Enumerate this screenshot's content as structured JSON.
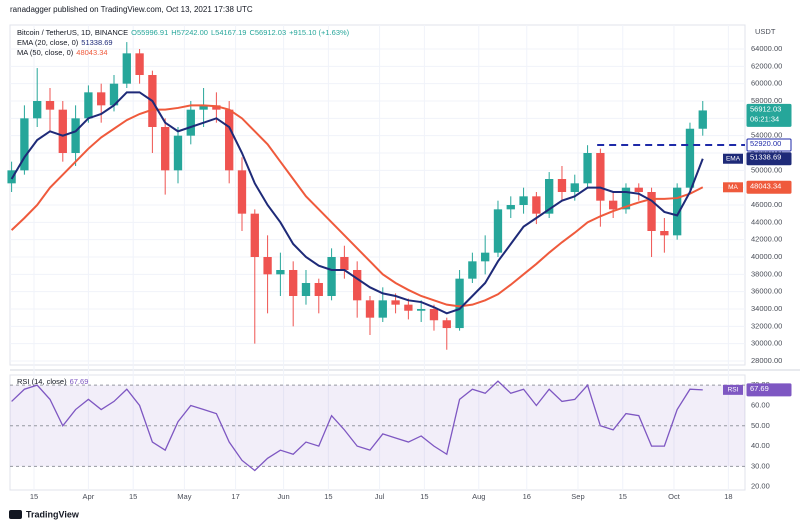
{
  "header": "ranadagger published on TradingView.com, Oct 13, 2021 17:38 UTC",
  "footer": "TradingView",
  "chart_data": [
    {
      "type": "candlestick",
      "legend": {
        "symbol": "Bitcoin / TetherUS, 1D, BINANCE",
        "open": "O55996.91",
        "high": "H57242.00",
        "low": "L54167.19",
        "close": "C56912.03",
        "change": "+915.10 (+1.63%)"
      },
      "unit": "USDT",
      "countdown": "06:21:34",
      "up_color": "#26a69a",
      "down_color": "#ef5350",
      "x": [
        -7,
        -3,
        1,
        5,
        9,
        13,
        17,
        21,
        25,
        29,
        33,
        37,
        41,
        45,
        49,
        53,
        57,
        61,
        65,
        69,
        73,
        77,
        81,
        85,
        89,
        93,
        97,
        101,
        105,
        109,
        113,
        117,
        121,
        125,
        129,
        133,
        137,
        141,
        145,
        149,
        153,
        157,
        161,
        165,
        169,
        173,
        177,
        181,
        185,
        189,
        193,
        197,
        201,
        205,
        209
      ],
      "open": [
        48500,
        50000,
        56000,
        58000,
        57000,
        52000,
        56000,
        59000,
        57500,
        60000,
        63500,
        61000,
        55000,
        50000,
        54000,
        57000,
        57500,
        57000,
        50000,
        45000,
        40000,
        38000,
        38500,
        35500,
        37000,
        35500,
        40000,
        38500,
        35000,
        33000,
        35000,
        34500,
        33800,
        34000,
        32700,
        31800,
        37500,
        39500,
        40500,
        45500,
        46000,
        47000,
        45000,
        49000,
        47500,
        48500,
        52000,
        46500,
        45500,
        48000,
        47500,
        43000,
        42500,
        48000,
        54800
      ],
      "high": [
        51000,
        57500,
        61800,
        59500,
        58000,
        57500,
        59800,
        60000,
        61000,
        64800,
        64000,
        61500,
        56000,
        55000,
        58000,
        59500,
        59000,
        58000,
        51500,
        45500,
        42500,
        40500,
        39500,
        38500,
        37500,
        41000,
        41300,
        39500,
        35500,
        36500,
        35800,
        35200,
        35000,
        34500,
        33000,
        38500,
        40500,
        42500,
        46500,
        47000,
        48000,
        47500,
        49800,
        50500,
        49500,
        52900,
        52500,
        47500,
        48500,
        48500,
        48000,
        44500,
        48500,
        55500,
        58000
      ],
      "low": [
        47500,
        49500,
        55000,
        54500,
        51000,
        50500,
        55500,
        55500,
        56800,
        59500,
        60000,
        52000,
        47200,
        48500,
        53000,
        55000,
        55500,
        48500,
        43000,
        30000,
        33500,
        35500,
        32000,
        34500,
        33500,
        35000,
        37500,
        33000,
        31000,
        32500,
        33500,
        32800,
        32500,
        31500,
        29300,
        31500,
        37000,
        38000,
        40000,
        44500,
        45000,
        43800,
        44500,
        46500,
        46500,
        48000,
        43500,
        44500,
        45000,
        46500,
        40000,
        40500,
        42000,
        47500,
        54000
      ],
      "close": [
        50000,
        56000,
        58000,
        57000,
        52000,
        56000,
        59000,
        57500,
        60000,
        63500,
        61000,
        55000,
        50000,
        54000,
        57000,
        57500,
        57000,
        50000,
        45000,
        40000,
        38000,
        38500,
        35500,
        37000,
        35500,
        40000,
        38500,
        35000,
        33000,
        35000,
        34500,
        33800,
        34000,
        32700,
        31800,
        37500,
        39500,
        40500,
        45500,
        46000,
        47000,
        45000,
        49000,
        47500,
        48500,
        52000,
        46500,
        45500,
        48000,
        47500,
        43000,
        42500,
        48000,
        54800,
        56912.03
      ],
      "series": [
        {
          "name": "MA (50, close, 0)",
          "tag": "MA",
          "color": "#ef5a3c",
          "values": [
            43100,
            44500,
            46000,
            48000,
            49500,
            51000,
            52500,
            53800,
            54800,
            55800,
            56500,
            57000,
            57000,
            57200,
            57500,
            57500,
            57400,
            57000,
            56000,
            54500,
            53000,
            51000,
            49000,
            47000,
            45500,
            44000,
            42500,
            41000,
            39500,
            38000,
            37000,
            36200,
            35500,
            35000,
            34500,
            34300,
            34500,
            35000,
            35700,
            36800,
            38000,
            39200,
            40500,
            41700,
            42800,
            44000,
            44700,
            45300,
            45800,
            46300,
            46700,
            46700,
            46800,
            47300,
            48043.34
          ]
        },
        {
          "name": "EMA (20, close, 0)",
          "tag": "EMA",
          "color": "#1e2a78",
          "values": [
            49000,
            51500,
            53500,
            54500,
            54000,
            54500,
            56000,
            56500,
            57500,
            59000,
            59000,
            58000,
            55500,
            54500,
            55000,
            55500,
            56000,
            55000,
            52000,
            48500,
            46000,
            44000,
            41500,
            40000,
            39000,
            38500,
            38500,
            37500,
            36500,
            35800,
            35500,
            35000,
            34800,
            34200,
            33500,
            34000,
            35500,
            37000,
            39500,
            41500,
            43500,
            44500,
            45500,
            46500,
            47000,
            48000,
            48000,
            47500,
            47500,
            47300,
            46500,
            45200,
            44800,
            47500,
            51338.69
          ]
        }
      ],
      "level": {
        "value": 52920,
        "label": "52920.00"
      },
      "xlim": [
        -7.5,
        222.2
      ],
      "ylim": [
        27538,
        66770
      ],
      "xticks": [
        {
          "value": 0,
          "label": "15"
        },
        {
          "value": 17,
          "label": "Apr"
        },
        {
          "value": 31,
          "label": "15"
        },
        {
          "value": 47,
          "label": "May"
        },
        {
          "value": 63,
          "label": "17"
        },
        {
          "value": 78,
          "label": "Jun"
        },
        {
          "value": 92,
          "label": "15"
        },
        {
          "value": 108,
          "label": "Jul"
        },
        {
          "value": 122,
          "label": "15"
        },
        {
          "value": 139,
          "label": "Aug"
        },
        {
          "value": 154,
          "label": "16"
        },
        {
          "value": 170,
          "label": "Sep"
        },
        {
          "value": 184,
          "label": "15"
        },
        {
          "value": 200,
          "label": "Oct"
        },
        {
          "value": 217,
          "label": "18"
        }
      ],
      "yticks": [
        {
          "value": 28000,
          "label": "28000.00"
        },
        {
          "value": 30000,
          "label": "30000.00"
        },
        {
          "value": 32000,
          "label": "32000.00"
        },
        {
          "value": 34000,
          "label": "34000.00"
        },
        {
          "value": 36000,
          "label": "36000.00"
        },
        {
          "value": 38000,
          "label": "38000.00"
        },
        {
          "value": 40000,
          "label": "40000.00"
        },
        {
          "value": 42000,
          "label": "42000.00"
        },
        {
          "value": 44000,
          "label": "44000.00"
        },
        {
          "value": 46000,
          "label": "46000.00"
        },
        {
          "value": 48000,
          "label": "48000.00"
        },
        {
          "value": 50000,
          "label": "50000.00"
        },
        {
          "value": 52000,
          "label": "52000.00"
        },
        {
          "value": 54000,
          "label": "54000.00"
        },
        {
          "value": 56000,
          "label": "56000.00"
        },
        {
          "value": 58000,
          "label": "58000.00"
        },
        {
          "value": 60000,
          "label": "60000.00"
        },
        {
          "value": 62000,
          "label": "62000.00"
        },
        {
          "value": 64000,
          "label": "64000.00"
        }
      ],
      "grid": true
    },
    {
      "type": "line",
      "x": [
        -7,
        -3,
        1,
        5,
        9,
        13,
        17,
        21,
        25,
        29,
        33,
        37,
        41,
        45,
        49,
        53,
        57,
        61,
        65,
        69,
        73,
        77,
        81,
        85,
        89,
        93,
        97,
        101,
        105,
        109,
        113,
        117,
        121,
        125,
        129,
        133,
        137,
        141,
        145,
        149,
        153,
        157,
        161,
        165,
        169,
        173,
        177,
        181,
        185,
        189,
        193,
        197,
        201,
        205,
        209
      ],
      "series": [
        {
          "name": "RSI (14, close)",
          "tag": "RSI",
          "color": "#7e57c2",
          "values": [
            62,
            68,
            70,
            63,
            50,
            58,
            63,
            58,
            62,
            68,
            60,
            42,
            38,
            52,
            60,
            58,
            56,
            42,
            33,
            28,
            34,
            38,
            36,
            42,
            40,
            55,
            48,
            40,
            38,
            46,
            44,
            42,
            45,
            40,
            36,
            63,
            68,
            66,
            72,
            66,
            68,
            60,
            68,
            62,
            63,
            70,
            50,
            48,
            56,
            55,
            40,
            40,
            58,
            68,
            67.69
          ]
        }
      ],
      "band": [
        30,
        70
      ],
      "xlim": [
        -7.5,
        222.2
      ],
      "ylim": [
        18.4,
        75
      ],
      "yticks": [
        {
          "value": 20,
          "label": "20.00"
        },
        {
          "value": 30,
          "label": "30.00"
        },
        {
          "value": 40,
          "label": "40.00"
        },
        {
          "value": 50,
          "label": "50.00"
        },
        {
          "value": 60,
          "label": "60.00"
        },
        {
          "value": 70,
          "label": "70.00"
        }
      ]
    }
  ]
}
